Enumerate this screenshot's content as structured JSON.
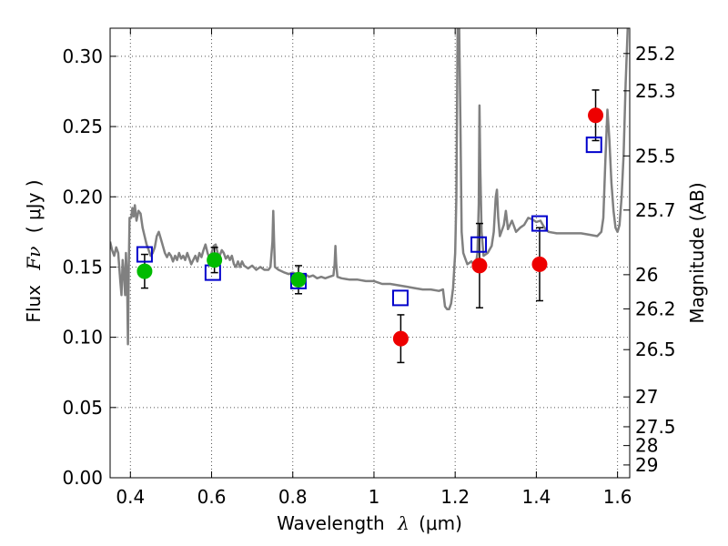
{
  "chart_data": {
    "type": "scatter",
    "title": "",
    "xlabel": {
      "text": "Wavelength",
      "symbol": "λ",
      "unit": "(μm)"
    },
    "ylabel": {
      "text": "Flux",
      "symbol": "Fν",
      "unit": "( μJy )"
    },
    "y2label": "Magnitude (AB)",
    "xlim": [
      0.35,
      1.63
    ],
    "ylim": [
      0.0,
      0.32
    ],
    "grid": true,
    "legend": "none",
    "xticks": [
      {
        "value": 0.4,
        "label": "0.4"
      },
      {
        "value": 0.6,
        "label": "0.6"
      },
      {
        "value": 0.8,
        "label": "0.8"
      },
      {
        "value": 1.0,
        "label": "1"
      },
      {
        "value": 1.2,
        "label": "1.2"
      },
      {
        "value": 1.4,
        "label": "1.4"
      },
      {
        "value": 1.6,
        "label": "1.6"
      }
    ],
    "yticks": [
      {
        "value": 0.0,
        "label": "0.00"
      },
      {
        "value": 0.05,
        "label": "0.05"
      },
      {
        "value": 0.1,
        "label": "0.10"
      },
      {
        "value": 0.15,
        "label": "0.15"
      },
      {
        "value": 0.2,
        "label": "0.20"
      },
      {
        "value": 0.25,
        "label": "0.25"
      },
      {
        "value": 0.3,
        "label": "0.30"
      }
    ],
    "y2ticks": [
      {
        "value": 25.2,
        "label": "25.2"
      },
      {
        "value": 25.3,
        "label": "25.3"
      },
      {
        "value": 25.5,
        "label": "25.5"
      },
      {
        "value": 25.7,
        "label": "25.7"
      },
      {
        "value": 26.0,
        "label": "26"
      },
      {
        "value": 26.2,
        "label": "26.2"
      },
      {
        "value": 26.5,
        "label": "26.5"
      },
      {
        "value": 27.0,
        "label": "27"
      },
      {
        "value": 27.5,
        "label": "27.5"
      },
      {
        "value": 28.0,
        "label": "28"
      },
      {
        "value": 29.0,
        "label": "29"
      }
    ],
    "colors": {
      "model": "#808080",
      "model_flux": "#0000cc",
      "green_points": "#00bb00",
      "red_points": "#ee0000",
      "errorbar": "#000000",
      "grid": "#555555"
    },
    "series": [
      {
        "kind": "line",
        "points": [
          [
            0.35,
            0.168
          ],
          [
            0.355,
            0.162
          ],
          [
            0.36,
            0.158
          ],
          [
            0.365,
            0.164
          ],
          [
            0.37,
            0.16
          ],
          [
            0.375,
            0.14
          ],
          [
            0.378,
            0.13
          ],
          [
            0.381,
            0.155
          ],
          [
            0.384,
            0.145
          ],
          [
            0.387,
            0.13
          ],
          [
            0.389,
            0.16
          ],
          [
            0.392,
            0.14
          ],
          [
            0.394,
            0.095
          ],
          [
            0.396,
            0.15
          ],
          [
            0.398,
            0.185
          ],
          [
            0.402,
            0.185
          ],
          [
            0.405,
            0.192
          ],
          [
            0.408,
            0.186
          ],
          [
            0.411,
            0.194
          ],
          [
            0.415,
            0.183
          ],
          [
            0.42,
            0.19
          ],
          [
            0.425,
            0.188
          ],
          [
            0.43,
            0.178
          ],
          [
            0.435,
            0.172
          ],
          [
            0.44,
            0.166
          ],
          [
            0.445,
            0.162
          ],
          [
            0.45,
            0.158
          ],
          [
            0.455,
            0.16
          ],
          [
            0.46,
            0.164
          ],
          [
            0.465,
            0.172
          ],
          [
            0.47,
            0.175
          ],
          [
            0.475,
            0.17
          ],
          [
            0.48,
            0.165
          ],
          [
            0.485,
            0.16
          ],
          [
            0.49,
            0.157
          ],
          [
            0.495,
            0.16
          ],
          [
            0.5,
            0.158
          ],
          [
            0.505,
            0.154
          ],
          [
            0.51,
            0.158
          ],
          [
            0.515,
            0.155
          ],
          [
            0.52,
            0.16
          ],
          [
            0.525,
            0.156
          ],
          [
            0.53,
            0.158
          ],
          [
            0.535,
            0.155
          ],
          [
            0.54,
            0.16
          ],
          [
            0.545,
            0.156
          ],
          [
            0.55,
            0.152
          ],
          [
            0.555,
            0.155
          ],
          [
            0.56,
            0.158
          ],
          [
            0.565,
            0.154
          ],
          [
            0.57,
            0.16
          ],
          [
            0.575,
            0.157
          ],
          [
            0.58,
            0.162
          ],
          [
            0.585,
            0.166
          ],
          [
            0.59,
            0.16
          ],
          [
            0.595,
            0.156
          ],
          [
            0.6,
            0.16
          ],
          [
            0.605,
            0.165
          ],
          [
            0.61,
            0.166
          ],
          [
            0.615,
            0.16
          ],
          [
            0.62,
            0.158
          ],
          [
            0.625,
            0.162
          ],
          [
            0.63,
            0.16
          ],
          [
            0.635,
            0.156
          ],
          [
            0.64,
            0.158
          ],
          [
            0.645,
            0.155
          ],
          [
            0.65,
            0.158
          ],
          [
            0.655,
            0.152
          ],
          [
            0.66,
            0.15
          ],
          [
            0.665,
            0.154
          ],
          [
            0.67,
            0.15
          ],
          [
            0.675,
            0.154
          ],
          [
            0.68,
            0.151
          ],
          [
            0.69,
            0.149
          ],
          [
            0.7,
            0.151
          ],
          [
            0.71,
            0.148
          ],
          [
            0.72,
            0.15
          ],
          [
            0.73,
            0.148
          ],
          [
            0.74,
            0.148
          ],
          [
            0.745,
            0.15
          ],
          [
            0.75,
            0.168
          ],
          [
            0.752,
            0.19
          ],
          [
            0.754,
            0.168
          ],
          [
            0.756,
            0.15
          ],
          [
            0.765,
            0.148
          ],
          [
            0.78,
            0.146
          ],
          [
            0.79,
            0.145
          ],
          [
            0.8,
            0.146
          ],
          [
            0.81,
            0.145
          ],
          [
            0.82,
            0.144
          ],
          [
            0.83,
            0.145
          ],
          [
            0.84,
            0.143
          ],
          [
            0.85,
            0.144
          ],
          [
            0.86,
            0.142
          ],
          [
            0.87,
            0.143
          ],
          [
            0.88,
            0.142
          ],
          [
            0.89,
            0.143
          ],
          [
            0.9,
            0.144
          ],
          [
            0.903,
            0.152
          ],
          [
            0.905,
            0.165
          ],
          [
            0.907,
            0.152
          ],
          [
            0.91,
            0.143
          ],
          [
            0.92,
            0.142
          ],
          [
            0.94,
            0.141
          ],
          [
            0.96,
            0.141
          ],
          [
            0.98,
            0.14
          ],
          [
            1.0,
            0.14
          ],
          [
            1.02,
            0.138
          ],
          [
            1.04,
            0.138
          ],
          [
            1.06,
            0.137
          ],
          [
            1.08,
            0.136
          ],
          [
            1.1,
            0.135
          ],
          [
            1.12,
            0.134
          ],
          [
            1.14,
            0.134
          ],
          [
            1.16,
            0.133
          ],
          [
            1.17,
            0.134
          ],
          [
            1.175,
            0.122
          ],
          [
            1.18,
            0.12
          ],
          [
            1.185,
            0.12
          ],
          [
            1.19,
            0.124
          ],
          [
            1.195,
            0.135
          ],
          [
            1.2,
            0.16
          ],
          [
            1.203,
            0.2
          ],
          [
            1.206,
            0.32
          ],
          [
            1.21,
            0.32
          ],
          [
            1.213,
            0.25
          ],
          [
            1.216,
            0.175
          ],
          [
            1.22,
            0.16
          ],
          [
            1.225,
            0.156
          ],
          [
            1.23,
            0.152
          ],
          [
            1.24,
            0.154
          ],
          [
            1.25,
            0.15
          ],
          [
            1.255,
            0.16
          ],
          [
            1.258,
            0.195
          ],
          [
            1.26,
            0.265
          ],
          [
            1.262,
            0.22
          ],
          [
            1.265,
            0.175
          ],
          [
            1.27,
            0.158
          ],
          [
            1.28,
            0.16
          ],
          [
            1.29,
            0.165
          ],
          [
            1.295,
            0.175
          ],
          [
            1.3,
            0.2
          ],
          [
            1.303,
            0.205
          ],
          [
            1.306,
            0.185
          ],
          [
            1.31,
            0.172
          ],
          [
            1.32,
            0.18
          ],
          [
            1.325,
            0.19
          ],
          [
            1.33,
            0.177
          ],
          [
            1.34,
            0.183
          ],
          [
            1.35,
            0.175
          ],
          [
            1.36,
            0.178
          ],
          [
            1.37,
            0.18
          ],
          [
            1.38,
            0.185
          ],
          [
            1.39,
            0.184
          ],
          [
            1.4,
            0.182
          ],
          [
            1.41,
            0.183
          ],
          [
            1.42,
            0.178
          ],
          [
            1.43,
            0.175
          ],
          [
            1.45,
            0.174
          ],
          [
            1.47,
            0.174
          ],
          [
            1.49,
            0.174
          ],
          [
            1.51,
            0.174
          ],
          [
            1.53,
            0.173
          ],
          [
            1.55,
            0.172
          ],
          [
            1.56,
            0.175
          ],
          [
            1.565,
            0.185
          ],
          [
            1.57,
            0.225
          ],
          [
            1.575,
            0.262
          ],
          [
            1.58,
            0.24
          ],
          [
            1.585,
            0.21
          ],
          [
            1.59,
            0.19
          ],
          [
            1.595,
            0.178
          ],
          [
            1.6,
            0.175
          ],
          [
            1.605,
            0.18
          ],
          [
            1.61,
            0.2
          ],
          [
            1.615,
            0.23
          ],
          [
            1.62,
            0.28
          ],
          [
            1.625,
            0.32
          ]
        ]
      },
      {
        "kind": "open-square",
        "points": [
          [
            0.435,
            0.159
          ],
          [
            0.603,
            0.146
          ],
          [
            0.814,
            0.14
          ],
          [
            1.065,
            0.128
          ],
          [
            1.258,
            0.166
          ],
          [
            1.408,
            0.181
          ],
          [
            1.542,
            0.237
          ]
        ]
      },
      {
        "kind": "filled-circle",
        "color_key": "green_points",
        "points": [
          {
            "x": 0.435,
            "y": 0.147,
            "err": 0.012
          },
          {
            "x": 0.607,
            "y": 0.155,
            "err": 0.009
          },
          {
            "x": 0.814,
            "y": 0.141,
            "err": 0.01
          }
        ]
      },
      {
        "kind": "filled-circle",
        "color_key": "red_points",
        "points": [
          {
            "x": 1.066,
            "y": 0.099,
            "err": 0.017
          },
          {
            "x": 1.26,
            "y": 0.151,
            "err": 0.03
          },
          {
            "x": 1.408,
            "y": 0.152,
            "err": 0.026
          },
          {
            "x": 1.546,
            "y": 0.258,
            "err": 0.018
          }
        ]
      }
    ]
  }
}
